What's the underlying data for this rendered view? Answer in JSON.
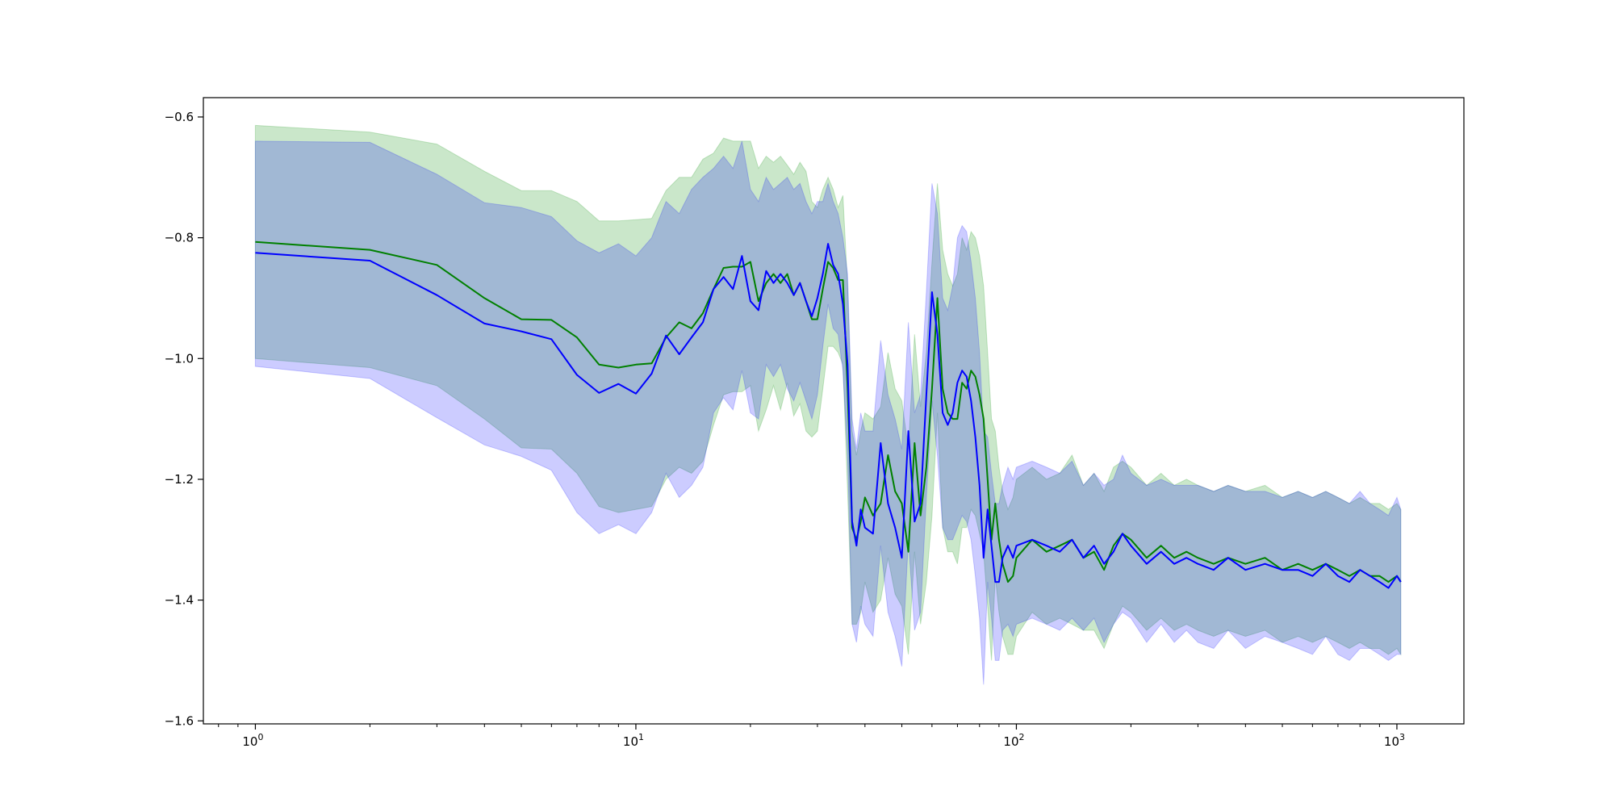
{
  "chart_data": {
    "type": "line",
    "title": "",
    "xlabel": "",
    "ylabel": "",
    "x_scale": "log",
    "xlim": [
      0.73,
      1500
    ],
    "ylim": [
      -1.605,
      -0.568
    ],
    "grid": false,
    "legend": "none",
    "x_ticks": [
      {
        "value": 1,
        "base": "10",
        "exp": "0"
      },
      {
        "value": 10,
        "base": "10",
        "exp": "1"
      },
      {
        "value": 100,
        "base": "10",
        "exp": "2"
      },
      {
        "value": 1000,
        "base": "10",
        "exp": "3"
      }
    ],
    "y_ticks": [
      {
        "value": -0.6,
        "label": "−0.6"
      },
      {
        "value": -0.8,
        "label": "−0.8"
      },
      {
        "value": -1.0,
        "label": "−1.0"
      },
      {
        "value": -1.2,
        "label": "−1.2"
      },
      {
        "value": -1.4,
        "label": "−1.4"
      },
      {
        "value": -1.6,
        "label": "−1.6"
      }
    ],
    "series": [
      {
        "color": "#008000",
        "band_color": "#2ca02c",
        "band_opacity": 0.25,
        "x": [
          1,
          2,
          3,
          4,
          5,
          6,
          7,
          8,
          9,
          10,
          11,
          12,
          13,
          14,
          15,
          16,
          17,
          18,
          19,
          20,
          21,
          22,
          23,
          24,
          25,
          26,
          27,
          28,
          29,
          30,
          31,
          32,
          33,
          34,
          35,
          36,
          37,
          38,
          39,
          40,
          42,
          44,
          46,
          48,
          50,
          52,
          54,
          56,
          58,
          60,
          62,
          64,
          66,
          68,
          70,
          72,
          74,
          76,
          78,
          80,
          82,
          84,
          86,
          88,
          90,
          92,
          95,
          98,
          100,
          110,
          120,
          130,
          140,
          150,
          160,
          170,
          180,
          190,
          200,
          220,
          240,
          260,
          280,
          300,
          330,
          360,
          400,
          450,
          500,
          550,
          600,
          650,
          700,
          750,
          800,
          850,
          900,
          950,
          1000,
          1024
        ],
        "y": [
          -0.807,
          -0.82,
          -0.845,
          -0.9,
          -0.935,
          -0.936,
          -0.965,
          -1.01,
          -1.015,
          -1.01,
          -1.008,
          -0.965,
          -0.94,
          -0.95,
          -0.925,
          -0.885,
          -0.85,
          -0.848,
          -0.848,
          -0.84,
          -0.905,
          -0.875,
          -0.86,
          -0.875,
          -0.86,
          -0.895,
          -0.875,
          -0.905,
          -0.935,
          -0.935,
          -0.885,
          -0.84,
          -0.85,
          -0.87,
          -0.87,
          -1.05,
          -1.28,
          -1.3,
          -1.27,
          -1.23,
          -1.26,
          -1.24,
          -1.16,
          -1.22,
          -1.24,
          -1.32,
          -1.14,
          -1.26,
          -1.18,
          -1.05,
          -0.9,
          -1.05,
          -1.09,
          -1.1,
          -1.1,
          -1.04,
          -1.05,
          -1.02,
          -1.03,
          -1.06,
          -1.1,
          -1.2,
          -1.3,
          -1.24,
          -1.3,
          -1.34,
          -1.37,
          -1.36,
          -1.33,
          -1.3,
          -1.32,
          -1.31,
          -1.3,
          -1.33,
          -1.32,
          -1.35,
          -1.31,
          -1.29,
          -1.3,
          -1.33,
          -1.31,
          -1.33,
          -1.32,
          -1.33,
          -1.34,
          -1.33,
          -1.34,
          -1.33,
          -1.35,
          -1.34,
          -1.35,
          -1.34,
          -1.35,
          -1.36,
          -1.35,
          -1.36,
          -1.36,
          -1.37,
          -1.36,
          -1.37
        ],
        "upper": [
          -0.614,
          -0.625,
          -0.645,
          -0.69,
          -0.722,
          -0.722,
          -0.74,
          -0.772,
          -0.772,
          -0.77,
          -0.768,
          -0.722,
          -0.7,
          -0.7,
          -0.67,
          -0.66,
          -0.635,
          -0.64,
          -0.64,
          -0.64,
          -0.685,
          -0.665,
          -0.675,
          -0.665,
          -0.68,
          -0.695,
          -0.675,
          -0.69,
          -0.74,
          -0.75,
          -0.72,
          -0.7,
          -0.72,
          -0.75,
          -0.73,
          -0.88,
          -1.12,
          -1.16,
          -1.12,
          -1.09,
          -1.1,
          -1.08,
          -0.99,
          -1.05,
          -1.07,
          -1.15,
          -0.96,
          -1.08,
          -0.99,
          -0.84,
          -0.71,
          -0.82,
          -0.86,
          -0.88,
          -0.86,
          -0.8,
          -0.82,
          -0.79,
          -0.8,
          -0.83,
          -0.88,
          -0.99,
          -1.1,
          -1.12,
          -1.18,
          -1.22,
          -1.25,
          -1.23,
          -1.2,
          -1.18,
          -1.2,
          -1.19,
          -1.16,
          -1.21,
          -1.19,
          -1.22,
          -1.18,
          -1.17,
          -1.18,
          -1.21,
          -1.19,
          -1.21,
          -1.2,
          -1.21,
          -1.22,
          -1.21,
          -1.22,
          -1.21,
          -1.23,
          -1.22,
          -1.23,
          -1.22,
          -1.23,
          -1.24,
          -1.23,
          -1.24,
          -1.24,
          -1.25,
          -1.24,
          -1.25
        ],
        "lower": [
          -1.0,
          -1.015,
          -1.045,
          -1.1,
          -1.148,
          -1.15,
          -1.19,
          -1.245,
          -1.255,
          -1.25,
          -1.245,
          -1.2,
          -1.18,
          -1.19,
          -1.17,
          -1.11,
          -1.06,
          -1.055,
          -1.055,
          -1.045,
          -1.12,
          -1.085,
          -1.045,
          -1.085,
          -1.04,
          -1.095,
          -1.075,
          -1.12,
          -1.13,
          -1.12,
          -1.05,
          -0.98,
          -0.98,
          -0.99,
          -1.01,
          -1.22,
          -1.44,
          -1.44,
          -1.42,
          -1.37,
          -1.42,
          -1.4,
          -1.33,
          -1.39,
          -1.41,
          -1.49,
          -1.32,
          -1.44,
          -1.37,
          -1.26,
          -1.09,
          -1.28,
          -1.32,
          -1.32,
          -1.34,
          -1.28,
          -1.28,
          -1.25,
          -1.26,
          -1.29,
          -1.32,
          -1.41,
          -1.5,
          -1.36,
          -1.42,
          -1.46,
          -1.49,
          -1.49,
          -1.46,
          -1.42,
          -1.44,
          -1.43,
          -1.44,
          -1.45,
          -1.45,
          -1.48,
          -1.44,
          -1.41,
          -1.42,
          -1.45,
          -1.43,
          -1.45,
          -1.44,
          -1.45,
          -1.46,
          -1.45,
          -1.46,
          -1.45,
          -1.47,
          -1.46,
          -1.47,
          -1.46,
          -1.47,
          -1.48,
          -1.47,
          -1.48,
          -1.48,
          -1.49,
          -1.48,
          -1.49
        ]
      },
      {
        "color": "#0000ff",
        "band_color": "#0000ff",
        "band_opacity": 0.2,
        "x": [
          1,
          2,
          3,
          4,
          5,
          6,
          7,
          8,
          9,
          10,
          11,
          12,
          13,
          14,
          15,
          16,
          17,
          18,
          19,
          20,
          21,
          22,
          23,
          24,
          25,
          26,
          27,
          28,
          29,
          30,
          31,
          32,
          33,
          34,
          35,
          36,
          37,
          38,
          39,
          40,
          42,
          44,
          46,
          48,
          50,
          52,
          54,
          56,
          58,
          60,
          62,
          64,
          66,
          68,
          70,
          72,
          74,
          76,
          78,
          80,
          82,
          84,
          86,
          88,
          90,
          92,
          95,
          98,
          100,
          110,
          120,
          130,
          140,
          150,
          160,
          170,
          180,
          190,
          200,
          220,
          240,
          260,
          280,
          300,
          330,
          360,
          400,
          450,
          500,
          550,
          600,
          650,
          700,
          750,
          800,
          850,
          900,
          950,
          1000,
          1024
        ],
        "y": [
          -0.825,
          -0.838,
          -0.895,
          -0.942,
          -0.955,
          -0.968,
          -1.027,
          -1.057,
          -1.042,
          -1.058,
          -1.025,
          -0.962,
          -0.993,
          -0.965,
          -0.94,
          -0.885,
          -0.865,
          -0.885,
          -0.83,
          -0.905,
          -0.92,
          -0.855,
          -0.875,
          -0.86,
          -0.875,
          -0.895,
          -0.875,
          -0.905,
          -0.93,
          -0.9,
          -0.86,
          -0.81,
          -0.845,
          -0.86,
          -0.91,
          -1.01,
          -1.27,
          -1.31,
          -1.25,
          -1.28,
          -1.29,
          -1.14,
          -1.24,
          -1.28,
          -1.33,
          -1.12,
          -1.27,
          -1.24,
          -1.06,
          -0.89,
          -0.96,
          -1.09,
          -1.11,
          -1.09,
          -1.04,
          -1.02,
          -1.03,
          -1.07,
          -1.13,
          -1.21,
          -1.33,
          -1.25,
          -1.31,
          -1.37,
          -1.37,
          -1.33,
          -1.31,
          -1.33,
          -1.31,
          -1.3,
          -1.31,
          -1.32,
          -1.3,
          -1.33,
          -1.31,
          -1.34,
          -1.32,
          -1.29,
          -1.31,
          -1.34,
          -1.32,
          -1.34,
          -1.33,
          -1.34,
          -1.35,
          -1.33,
          -1.35,
          -1.34,
          -1.35,
          -1.35,
          -1.36,
          -1.34,
          -1.36,
          -1.37,
          -1.35,
          -1.36,
          -1.37,
          -1.38,
          -1.36,
          -1.37
        ],
        "upper": [
          -0.64,
          -0.642,
          -0.695,
          -0.742,
          -0.75,
          -0.765,
          -0.805,
          -0.825,
          -0.81,
          -0.83,
          -0.8,
          -0.74,
          -0.76,
          -0.72,
          -0.7,
          -0.685,
          -0.665,
          -0.685,
          -0.64,
          -0.72,
          -0.74,
          -0.7,
          -0.72,
          -0.71,
          -0.7,
          -0.72,
          -0.71,
          -0.74,
          -0.76,
          -0.74,
          -0.74,
          -0.71,
          -0.74,
          -0.76,
          -0.8,
          -0.86,
          -1.1,
          -1.15,
          -1.09,
          -1.12,
          -1.12,
          -0.97,
          -1.06,
          -1.1,
          -1.15,
          -0.94,
          -1.09,
          -1.06,
          -0.89,
          -0.71,
          -0.76,
          -0.9,
          -0.92,
          -0.88,
          -0.8,
          -0.78,
          -0.79,
          -0.84,
          -0.9,
          -0.99,
          -1.12,
          -1.13,
          -1.19,
          -1.24,
          -1.24,
          -1.21,
          -1.18,
          -1.2,
          -1.18,
          -1.17,
          -1.18,
          -1.19,
          -1.17,
          -1.21,
          -1.19,
          -1.21,
          -1.2,
          -1.16,
          -1.19,
          -1.21,
          -1.2,
          -1.21,
          -1.21,
          -1.21,
          -1.22,
          -1.21,
          -1.22,
          -1.22,
          -1.23,
          -1.22,
          -1.23,
          -1.22,
          -1.23,
          -1.24,
          -1.22,
          -1.24,
          -1.25,
          -1.26,
          -1.23,
          -1.25
        ],
        "lower": [
          -1.013,
          -1.033,
          -1.098,
          -1.143,
          -1.162,
          -1.185,
          -1.255,
          -1.29,
          -1.275,
          -1.29,
          -1.255,
          -1.19,
          -1.23,
          -1.21,
          -1.18,
          -1.09,
          -1.065,
          -1.085,
          -1.02,
          -1.09,
          -1.1,
          -1.01,
          -1.03,
          -1.01,
          -1.05,
          -1.07,
          -1.04,
          -1.07,
          -1.1,
          -1.06,
          -0.98,
          -0.91,
          -0.95,
          -0.96,
          -1.02,
          -1.16,
          -1.44,
          -1.47,
          -1.41,
          -1.44,
          -1.46,
          -1.31,
          -1.42,
          -1.46,
          -1.51,
          -1.3,
          -1.45,
          -1.42,
          -1.23,
          -1.07,
          -1.16,
          -1.28,
          -1.3,
          -1.3,
          -1.28,
          -1.26,
          -1.27,
          -1.3,
          -1.36,
          -1.43,
          -1.54,
          -1.37,
          -1.43,
          -1.5,
          -1.5,
          -1.45,
          -1.44,
          -1.46,
          -1.44,
          -1.43,
          -1.44,
          -1.45,
          -1.43,
          -1.45,
          -1.43,
          -1.47,
          -1.44,
          -1.42,
          -1.43,
          -1.47,
          -1.44,
          -1.47,
          -1.45,
          -1.47,
          -1.48,
          -1.45,
          -1.48,
          -1.46,
          -1.47,
          -1.48,
          -1.49,
          -1.46,
          -1.49,
          -1.5,
          -1.48,
          -1.48,
          -1.49,
          -1.5,
          -1.49,
          -1.49
        ]
      }
    ]
  }
}
